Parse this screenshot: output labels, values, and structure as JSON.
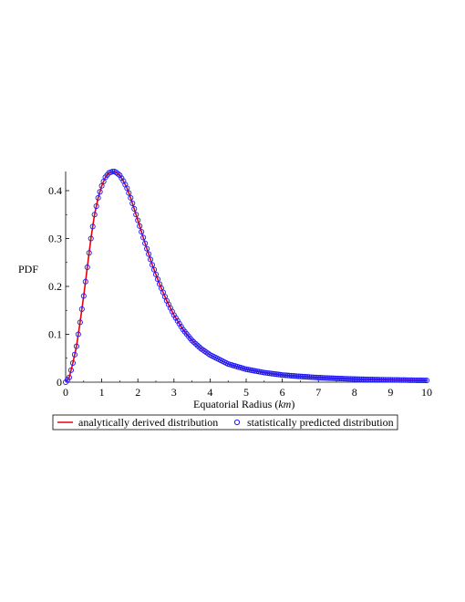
{
  "chart_data": {
    "type": "line",
    "title": "",
    "xlabel": "Equatorial Radius (",
    "xlabel_unit": "km",
    "xlabel_close": ")",
    "ylabel": "PDF",
    "xlim": [
      0,
      10
    ],
    "ylim": [
      0,
      0.44
    ],
    "xticks": [
      0,
      1,
      2,
      3,
      4,
      5,
      6,
      7,
      8,
      9,
      10
    ],
    "yticks": [
      0,
      0.1,
      0.2,
      0.3,
      0.4
    ],
    "ytick_labels": [
      "0",
      "0.1",
      "0.2",
      "0.3",
      "0.4"
    ],
    "grid": false,
    "legend_position": "bottom",
    "series": [
      {
        "name": "analytically derived distribution",
        "style": "line",
        "color": "#e8000b",
        "x": [
          0,
          0.1,
          0.2,
          0.3,
          0.4,
          0.5,
          0.6,
          0.7,
          0.8,
          0.9,
          1.0,
          1.1,
          1.2,
          1.3,
          1.35,
          1.4,
          1.5,
          1.6,
          1.7,
          1.8,
          1.9,
          2.0,
          2.2,
          2.4,
          2.6,
          2.8,
          3.0,
          3.25,
          3.5,
          3.75,
          4.0,
          4.5,
          5.0,
          5.5,
          6.0,
          6.5,
          7.0,
          7.5,
          8.0,
          8.5,
          9.0,
          9.5,
          10.0
        ],
        "y": [
          0,
          0.01,
          0.04,
          0.075,
          0.125,
          0.18,
          0.24,
          0.3,
          0.35,
          0.385,
          0.41,
          0.428,
          0.437,
          0.44,
          0.44,
          0.438,
          0.432,
          0.42,
          0.405,
          0.385,
          0.362,
          0.338,
          0.29,
          0.245,
          0.205,
          0.17,
          0.14,
          0.11,
          0.087,
          0.07,
          0.057,
          0.038,
          0.027,
          0.02,
          0.015,
          0.012,
          0.0095,
          0.0078,
          0.0065,
          0.0055,
          0.0048,
          0.0042,
          0.0037
        ]
      },
      {
        "name": "statistically predicted distribution",
        "style": "markers",
        "marker": "circle-open",
        "color": "#1a1aff",
        "x_start": 0,
        "x_end": 10,
        "x_step": 0.05
      }
    ]
  }
}
